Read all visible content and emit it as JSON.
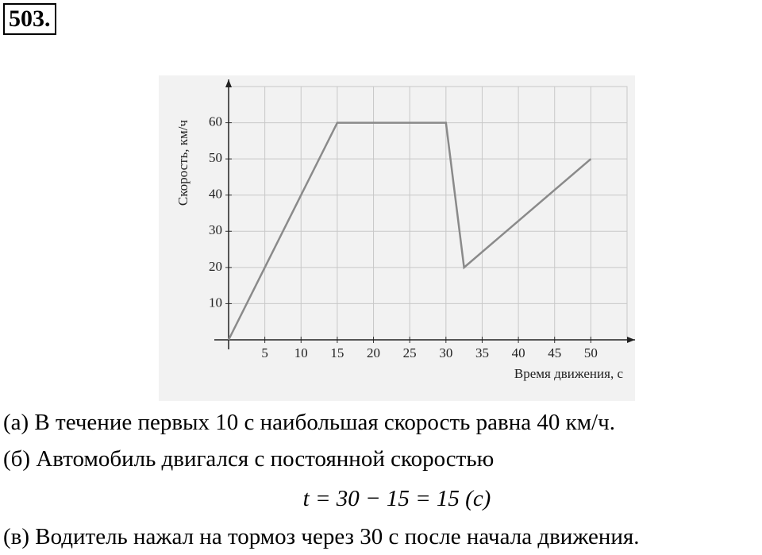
{
  "problem_number": "503.",
  "chart_data": {
    "type": "line",
    "y_label": "Скорость, км/ч",
    "x_label": "Время движения, с",
    "x": [
      0,
      15,
      30,
      32.5,
      50
    ],
    "values": [
      0,
      60,
      60,
      20,
      50
    ],
    "color": "#8a8a8a",
    "xlim": [
      0,
      55
    ],
    "ylim": [
      0,
      70
    ],
    "xticks": [
      5,
      10,
      15,
      20,
      25,
      30,
      35,
      40,
      45,
      50
    ],
    "yticks": [
      10,
      20,
      30,
      40,
      50,
      60
    ],
    "grid": true
  },
  "answers": {
    "a": "(а) В течение первых 10 с наибольшая скорость равна 40 км/ч.",
    "b": "(б) Автомобиль двигался с постоянной скоростью",
    "formula": "t = 30 − 15 = 15 (c)",
    "c": "(в) Водитель нажал на тормоз через 30 с после начала движения."
  }
}
